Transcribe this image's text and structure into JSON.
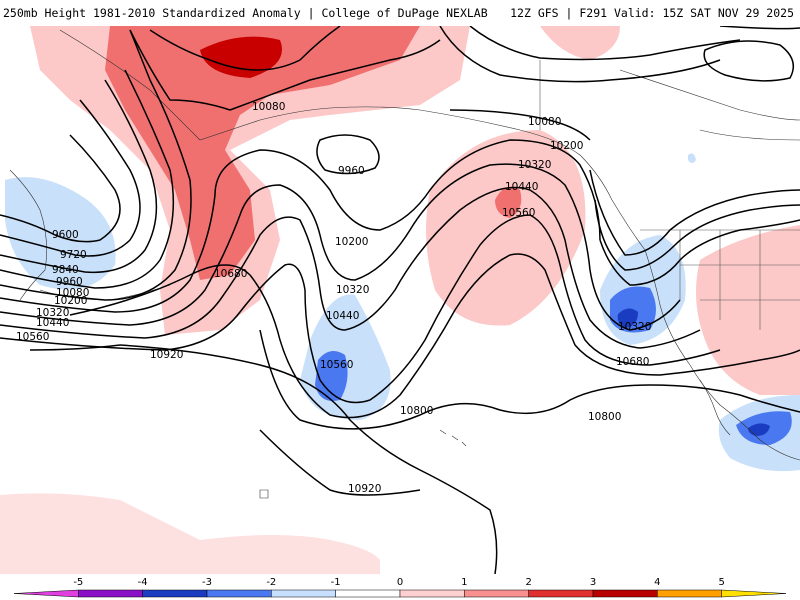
{
  "header": {
    "left_title": "250mb Height 1981-2010 Standardized Anomaly | College of DuPage NEXLAB",
    "right_title": "12Z GFS | F291 Valid: 15Z SAT NOV 29 2025"
  },
  "contour_labels": [
    "9600",
    "9720",
    "9840",
    "9960",
    "10080",
    "10200",
    "10320",
    "10440",
    "10560",
    "10920",
    "10080",
    "9960",
    "10200",
    "10680",
    "10320",
    "10440",
    "10560",
    "10800",
    "10920",
    "10080",
    "10200",
    "10320",
    "10440",
    "10560",
    "10320",
    "10680",
    "10800"
  ],
  "colorbar": {
    "ticks": [
      "-5",
      "-4",
      "-3",
      "-2",
      "-1",
      "0",
      "1",
      "2",
      "3",
      "4",
      "5"
    ],
    "colors": [
      "#e040e0",
      "#8a10c8",
      "#1a3cc0",
      "#4a78f0",
      "#c8e0ff",
      "#ffffff",
      "#ffd0d0",
      "#f89090",
      "#e03030",
      "#b80000",
      "#ffa000",
      "#ffe000"
    ]
  },
  "anomaly_colors": {
    "light_blue": "#c8e0fa",
    "mid_blue": "#4a78f0",
    "dark_blue": "#1a3cc0",
    "light_red": "#fcc8c8",
    "mid_red": "#f07070",
    "dark_red": "#c80000",
    "land_tan": "#fde0e0"
  }
}
